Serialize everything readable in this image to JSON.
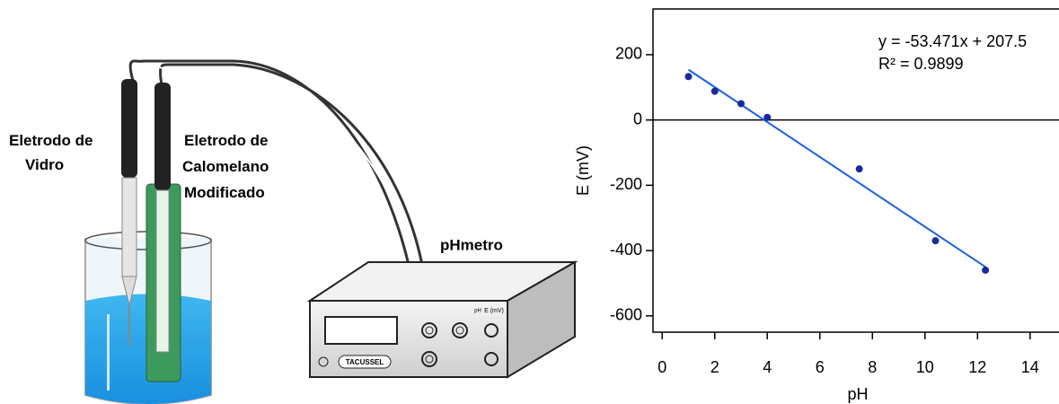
{
  "diagram": {
    "glass_electrode": [
      "Eletrodo de",
      "Vidro"
    ],
    "calomel_electrode": [
      "Eletrodo de",
      "Calomelano",
      "Modificado"
    ],
    "meter": "pHmetro",
    "brand": "TACUSSEL",
    "knob_labels": [
      "pH",
      "E (mV)"
    ]
  },
  "chart_data": {
    "type": "scatter",
    "x_label": "pH",
    "y_label": "E (mV)",
    "x": [
      1,
      2,
      3,
      4,
      7.5,
      10.4,
      12.3
    ],
    "values": [
      133,
      88,
      50,
      8,
      -150,
      -370,
      -460
    ],
    "color": "#1b2a9a",
    "fit": {
      "x": [
        1,
        12.3
      ],
      "values": [
        154,
        -450
      ],
      "color": "#1a5fe0"
    },
    "annotations": [
      "y = -53.471x + 207.5",
      "R² = 0.9899"
    ],
    "xlim": [
      -0.35,
      15.1
    ],
    "ylim": [
      -650,
      340
    ],
    "xticks": [
      0,
      2,
      4,
      6,
      8,
      10,
      12,
      14
    ],
    "yticks": [
      -600,
      -400,
      -200,
      0,
      200
    ],
    "zero_line": true,
    "grid": false
  }
}
